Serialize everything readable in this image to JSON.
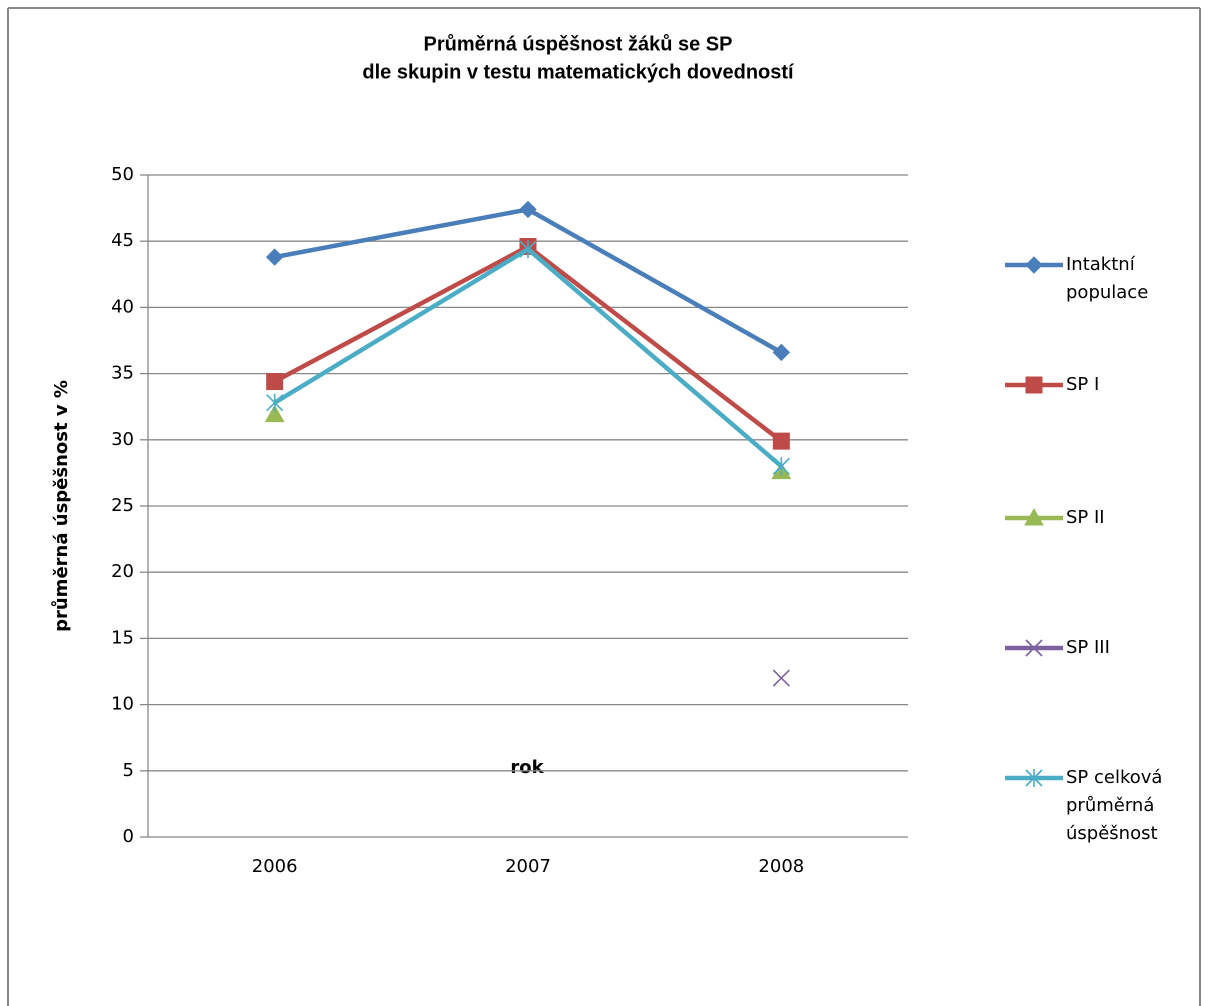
{
  "chart_data": {
    "type": "line",
    "title": [
      "Průměrná úspěšnost žáků se SP",
      "dle skupin v testu matematických dovedností"
    ],
    "x_label": "rok",
    "y_label": "průměrná úspěšnost v %",
    "categories": [
      "2006",
      "2007",
      "2008"
    ],
    "ylim": [
      0,
      50
    ],
    "yticks": [
      0,
      5,
      10,
      15,
      20,
      25,
      30,
      35,
      40,
      45,
      50
    ],
    "grid": true,
    "legend": "right",
    "series": [
      {
        "name": "Intaktní populace",
        "color": "#4a7ebb",
        "marker": "diamond",
        "values": [
          43.8,
          47.4,
          36.6
        ]
      },
      {
        "name": "SP I",
        "color": "#be4b48",
        "marker": "square",
        "values": [
          34.4,
          44.6,
          29.9
        ]
      },
      {
        "name": "SP II",
        "color": "#98b954",
        "marker": "triangle",
        "values": [
          31.9,
          null,
          27.6
        ]
      },
      {
        "name": "SP III",
        "color": "#7d60a0",
        "marker": "x",
        "values": [
          null,
          null,
          12.0
        ]
      },
      {
        "name": "SP celková průměrná úspěšnost",
        "color": "#4bacc6",
        "marker": "star",
        "values": [
          32.8,
          44.4,
          28.0
        ]
      }
    ]
  }
}
